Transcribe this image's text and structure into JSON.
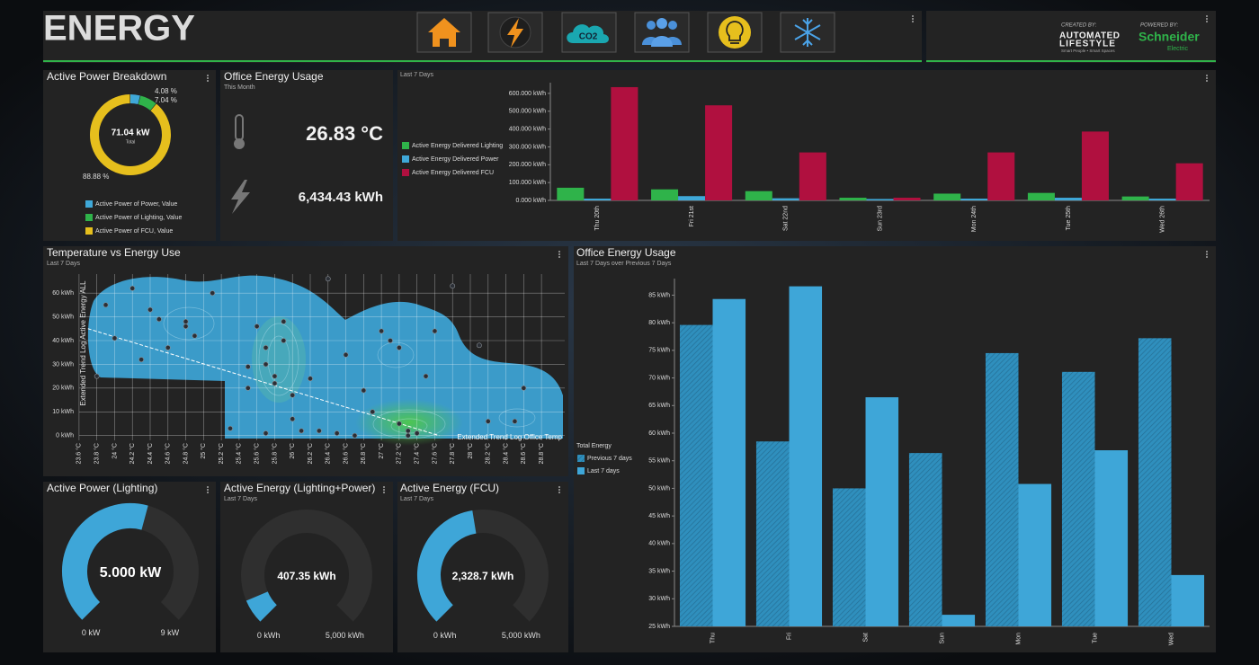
{
  "header": {
    "title": "ENERGY",
    "co2_label": "CO2",
    "created_by": "CREATED BY:",
    "brand_1": "AUTOMATED",
    "brand_2": "LIFESTYLE",
    "brand_tagline": "Smart People • Smart Spaces",
    "powered_by": "POWERED BY:",
    "partner_1": "Schneider",
    "partner_2": "Electric"
  },
  "office_tile": {
    "title": "Office Energy Usage",
    "subtitle": "This Month",
    "temperature": "26.83 °C",
    "energy": "6,434.43 kWh"
  },
  "chart_data": [
    {
      "type": "pie",
      "title": "Active Power Breakdown",
      "center_label": "71.04 kW",
      "center_sublabel": "Total",
      "categories": [
        "Active Power of Power, Value",
        "Active Power of Lighting, Value",
        "Active Power of FCU, Value"
      ],
      "values": [
        4.08,
        7.04,
        88.88
      ],
      "value_labels": [
        "4.08 %",
        "7.04 %",
        "88.88 %"
      ],
      "colors": [
        "#3fa8d8",
        "#2fb34a",
        "#e6bf1d"
      ]
    },
    {
      "type": "bar",
      "subtitle": "Last 7 Days",
      "categories": [
        "Thu 20th",
        "Fri 21st",
        "Sat 22nd",
        "Sun 23rd",
        "Mon 24th",
        "Tue 25th",
        "Wed 26th"
      ],
      "series": [
        {
          "name": "Active Energy Delivered Lighting",
          "color": "#2fb34a",
          "values": [
            71,
            62,
            52,
            15,
            38,
            42,
            22
          ]
        },
        {
          "name": "Active Energy Delivered Power",
          "color": "#3fa8d8",
          "values": [
            10,
            24,
            12,
            8,
            10,
            15,
            10
          ]
        },
        {
          "name": "Active Energy Delivered FCU",
          "color": "#b0103f",
          "values": [
            635,
            533,
            269,
            15,
            269,
            386,
            208
          ]
        }
      ],
      "ylim": [
        0,
        660
      ],
      "yticks": [
        {
          "value": 0,
          "label": "0.000 kWh"
        },
        {
          "value": 100,
          "label": "100.000 kWh"
        },
        {
          "value": 200,
          "label": "200.000 kWh"
        },
        {
          "value": 300,
          "label": "300.000 kWh"
        },
        {
          "value": 400,
          "label": "400.000 kWh"
        },
        {
          "value": 500,
          "label": "500.000 kWh"
        },
        {
          "value": 600,
          "label": "600.000 kWh"
        }
      ],
      "grid": false
    },
    {
      "type": "scatter",
      "title": "Temperature vs Energy Use",
      "subtitle": "Last 7 Days",
      "xlabel": "Extended Trend Log Office Temp",
      "ylabel": "Extended Trend Log Active Energy ALL",
      "color": "#2b2f36",
      "x": [
        23.8,
        23.9,
        24,
        24.2,
        24.4,
        24.5,
        24.6,
        24.8,
        24.9,
        25.1,
        25.3,
        25.5,
        25.6,
        25.7,
        25.8,
        25.8,
        25.9,
        25.9,
        26,
        26,
        26.1,
        25.7,
        25.5,
        26.2,
        26.3,
        26.5,
        26.7,
        26.8,
        26.9,
        27,
        27.1,
        27.2,
        27.3,
        27.2,
        27.3,
        27.4,
        27.5,
        27.6,
        28.1,
        28.2,
        28.5,
        28.6,
        26.6,
        24.3,
        27.8,
        26.4,
        24.8,
        25.7
      ],
      "y": [
        25,
        55,
        41,
        62,
        53,
        49,
        37,
        48,
        42,
        60,
        3,
        29,
        46,
        37,
        25,
        22,
        48,
        40,
        17,
        7,
        2,
        1,
        20,
        24,
        2,
        1,
        0,
        19,
        10,
        44,
        40,
        37,
        2,
        5,
        0,
        1,
        25,
        44,
        38,
        6,
        6,
        20,
        34,
        32,
        63,
        66,
        46,
        30
      ],
      "trend": {
        "x": [
          23.7,
          27.65
        ],
        "y": [
          45,
          0
        ]
      },
      "xlim": [
        23.5,
        28.9
      ],
      "ylim": [
        -2,
        68
      ],
      "xticks": [
        {
          "value": 23.6,
          "label": "23.6 °C"
        },
        {
          "value": 23.8,
          "label": "23.8 °C"
        },
        {
          "value": 24,
          "label": "24 °C"
        },
        {
          "value": 24.2,
          "label": "24.2 °C"
        },
        {
          "value": 24.4,
          "label": "24.4 °C"
        },
        {
          "value": 24.6,
          "label": "24.6 °C"
        },
        {
          "value": 24.8,
          "label": "24.8 °C"
        },
        {
          "value": 25,
          "label": "25 °C"
        },
        {
          "value": 25.2,
          "label": "25.2 °C"
        },
        {
          "value": 25.4,
          "label": "25.4 °C"
        },
        {
          "value": 25.6,
          "label": "25.6 °C"
        },
        {
          "value": 25.8,
          "label": "25.8 °C"
        },
        {
          "value": 26,
          "label": "26 °C"
        },
        {
          "value": 26.2,
          "label": "26.2 °C"
        },
        {
          "value": 26.4,
          "label": "26.4 °C"
        },
        {
          "value": 26.6,
          "label": "26.6 °C"
        },
        {
          "value": 26.8,
          "label": "26.8 °C"
        },
        {
          "value": 27,
          "label": "27 °C"
        },
        {
          "value": 27.2,
          "label": "27.2 °C"
        },
        {
          "value": 27.4,
          "label": "27.4 °C"
        },
        {
          "value": 27.6,
          "label": "27.6 °C"
        },
        {
          "value": 27.8,
          "label": "27.8 °C"
        },
        {
          "value": 28,
          "label": "28 °C"
        },
        {
          "value": 28.2,
          "label": "28.2 °C"
        },
        {
          "value": 28.4,
          "label": "28.4 °C"
        },
        {
          "value": 28.6,
          "label": "28.6 °C"
        },
        {
          "value": 28.8,
          "label": "28.8 °C"
        }
      ],
      "yticks": [
        {
          "value": 0,
          "label": "0 kWh"
        },
        {
          "value": 10,
          "label": "10 kWh"
        },
        {
          "value": 20,
          "label": "20 kWh"
        },
        {
          "value": 30,
          "label": "30 kWh"
        },
        {
          "value": 40,
          "label": "40 kWh"
        },
        {
          "value": 50,
          "label": "50 kWh"
        },
        {
          "value": 60,
          "label": "60 kWh"
        }
      ],
      "grid": true
    },
    {
      "type": "gauge",
      "title": "Active Power (Lighting)",
      "value": 5,
      "value_label": "5.000 kW",
      "min": {
        "value": 0,
        "label": "0 kW"
      },
      "max": {
        "value": 9,
        "label": "9 kW"
      },
      "color": "#3ea6d8"
    },
    {
      "type": "gauge",
      "title": "Active Energy (Lighting+Power)",
      "subtitle": "Last 7 Days",
      "value": 407.35,
      "value_label": "407.35 kWh",
      "min": {
        "value": 0,
        "label": "0 kWh"
      },
      "max": {
        "value": 5000,
        "label": "5,000 kWh"
      },
      "color": "#3ea6d8"
    },
    {
      "type": "gauge",
      "title": "Active Energy (FCU)",
      "subtitle": "Last 7 Days",
      "value": 2328.7,
      "value_label": "2,328.7 kWh",
      "min": {
        "value": 0,
        "label": "0 kWh"
      },
      "max": {
        "value": 5000,
        "label": "5,000 kWh"
      },
      "color": "#3ea6d8"
    },
    {
      "type": "bar",
      "title": "Office Energy Usage",
      "subtitle": "Last 7 Days over Previous 7 Days",
      "legend_title": "Total Energy",
      "categories": [
        "Thu",
        "Fri",
        "Sat",
        "Sun",
        "Mon",
        "Tue",
        "Wed"
      ],
      "series": [
        {
          "name": "Previous 7 days",
          "color": "#2f8fbd",
          "hatch": true,
          "values": [
            79.6,
            58.5,
            50,
            56.4,
            74.5,
            71.1,
            77.2
          ]
        },
        {
          "name": "Last 7 days",
          "color": "#3ea6d8",
          "hatch": false,
          "values": [
            84.3,
            86.6,
            66.5,
            27.1,
            50.8,
            56.9,
            34.3
          ]
        }
      ],
      "ylim": [
        25,
        88
      ],
      "yticks": [
        {
          "value": 25,
          "label": "25 kWh"
        },
        {
          "value": 30,
          "label": "30 kWh"
        },
        {
          "value": 35,
          "label": "35 kWh"
        },
        {
          "value": 40,
          "label": "40 kWh"
        },
        {
          "value": 45,
          "label": "45 kWh"
        },
        {
          "value": 50,
          "label": "50 kWh"
        },
        {
          "value": 55,
          "label": "55 kWh"
        },
        {
          "value": 60,
          "label": "60 kWh"
        },
        {
          "value": 65,
          "label": "65 kWh"
        },
        {
          "value": 70,
          "label": "70 kWh"
        },
        {
          "value": 75,
          "label": "75 kWh"
        },
        {
          "value": 80,
          "label": "80 kWh"
        },
        {
          "value": 85,
          "label": "85 kWh"
        }
      ],
      "grid": false
    }
  ]
}
